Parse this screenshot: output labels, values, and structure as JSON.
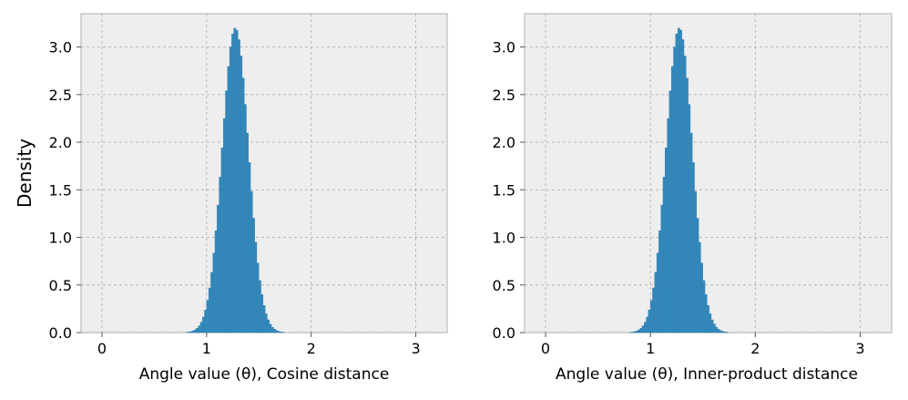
{
  "chart_data": [
    {
      "type": "bar",
      "xlabel": "Angle value (θ), Cosine distance",
      "ylabel": "Density",
      "xlim": [
        -0.2,
        3.3
      ],
      "ylim": [
        0,
        3.35
      ],
      "xticks": [
        0,
        1,
        2,
        3
      ],
      "yticks": [
        0.0,
        0.5,
        1.0,
        1.5,
        2.0,
        2.5,
        3.0
      ],
      "xtick_labels": [
        "0",
        "1",
        "2",
        "3"
      ],
      "ytick_labels": [
        "0.0",
        "0.5",
        "1.0",
        "1.5",
        "2.0",
        "2.5",
        "3.0"
      ],
      "grid": true,
      "histogram": {
        "center": 1.275,
        "std": 0.125,
        "peak_density": 3.2,
        "bin_width": 0.02,
        "range": [
          0.6,
          1.95
        ]
      },
      "color": "#348ABD"
    },
    {
      "type": "bar",
      "xlabel": "Angle value (θ), Inner-product distance",
      "ylabel": "",
      "xlim": [
        -0.2,
        3.3
      ],
      "ylim": [
        0,
        3.35
      ],
      "xticks": [
        0,
        1,
        2,
        3
      ],
      "yticks": [
        0.0,
        0.5,
        1.0,
        1.5,
        2.0,
        2.5,
        3.0
      ],
      "xtick_labels": [
        "0",
        "1",
        "2",
        "3"
      ],
      "ytick_labels": [
        "0.0",
        "0.5",
        "1.0",
        "1.5",
        "2.0",
        "2.5",
        "3.0"
      ],
      "grid": true,
      "histogram": {
        "center": 1.275,
        "std": 0.125,
        "peak_density": 3.2,
        "bin_width": 0.02,
        "range": [
          0.6,
          1.95
        ]
      },
      "color": "#348ABD"
    }
  ],
  "style": {
    "panel_bg": "#EEEEEE",
    "grid_color": "#B2B2B2",
    "spine_color": "#BCBCBC"
  }
}
